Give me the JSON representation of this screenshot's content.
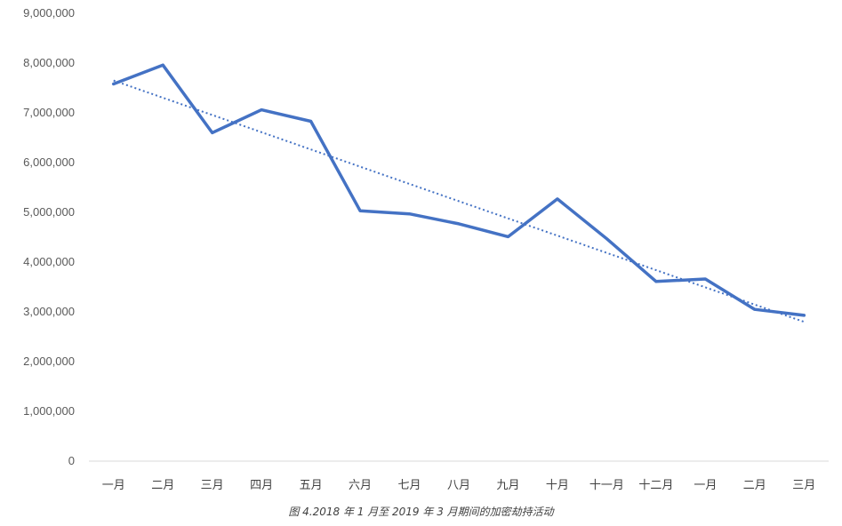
{
  "chart_data": {
    "type": "line",
    "title": "",
    "xlabel": "",
    "ylabel": "",
    "caption": "图 4.2018 年 1 月至 2019 年 3 月期间的加密劫持活动",
    "categories": [
      "一月",
      "二月",
      "三月",
      "四月",
      "五月",
      "六月",
      "七月",
      "八月",
      "九月",
      "十月",
      "十一月",
      "十二月",
      "一月",
      "二月",
      "三月"
    ],
    "series": [
      {
        "values": [
          7580000,
          7960000,
          6600000,
          7060000,
          6830000,
          5030000,
          4970000,
          4770000,
          4510000,
          5270000,
          4470000,
          3610000,
          3660000,
          3050000,
          2930000
        ],
        "color": "#4472C4"
      }
    ],
    "trendline": {
      "type": "linear",
      "style": "dotted",
      "color": "#4472C4",
      "start": 7650000,
      "end": 2800000
    },
    "ylim": [
      0,
      9000000
    ],
    "yticks": [
      0,
      1000000,
      2000000,
      3000000,
      4000000,
      5000000,
      6000000,
      7000000,
      8000000,
      9000000
    ],
    "ytick_labels": [
      "0",
      "1,000,000",
      "2,000,000",
      "3,000,000",
      "4,000,000",
      "5,000,000",
      "6,000,000",
      "7,000,000",
      "8,000,000",
      "9,000,000"
    ],
    "grid": false,
    "legend": "none"
  }
}
